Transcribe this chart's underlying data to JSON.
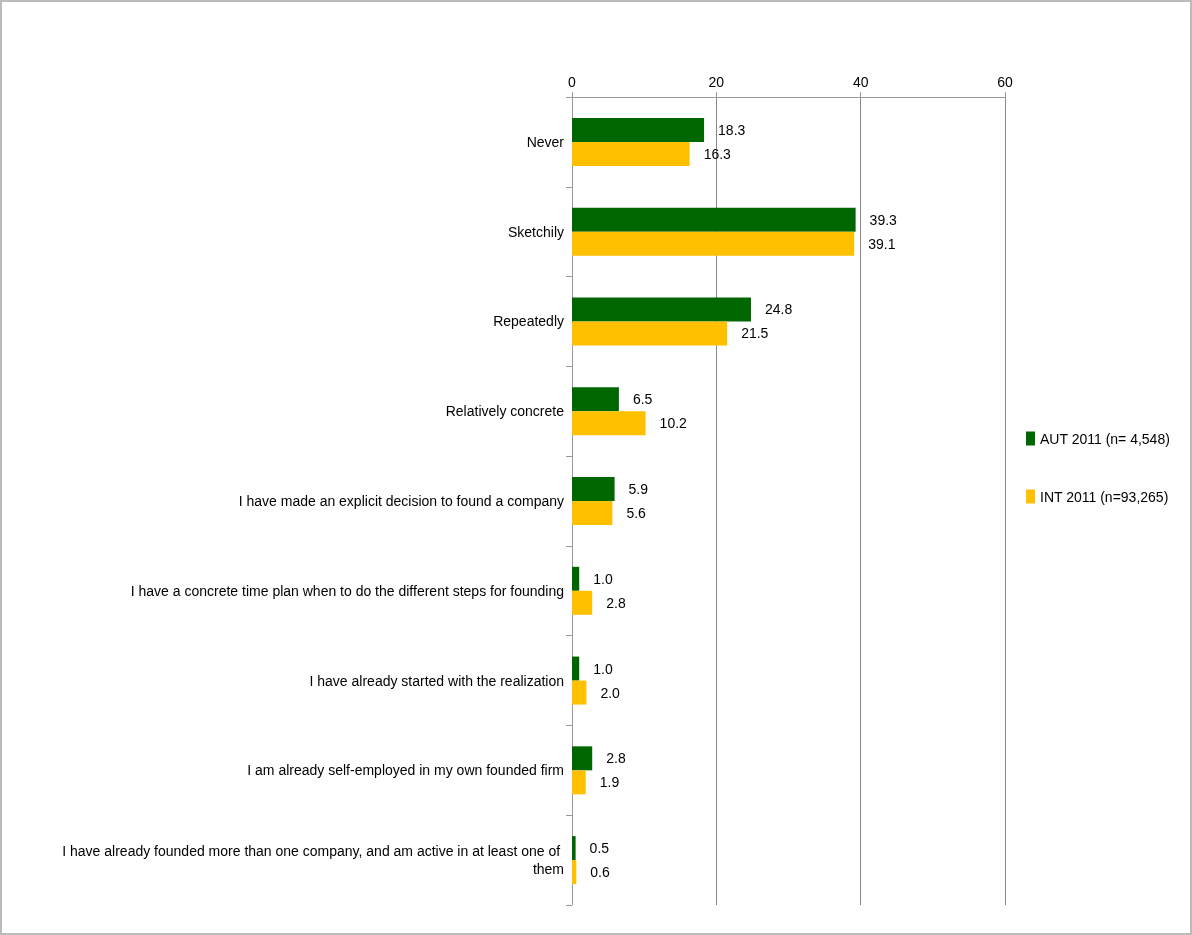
{
  "chart_data": {
    "type": "bar",
    "orientation": "horizontal",
    "categories": [
      "Never",
      "Sketchily",
      "Repeatedly",
      "Relatively concrete",
      "I have made an explicit decision to found a company",
      "I have a concrete time plan when to do the different steps for founding",
      "I have already started with the realization",
      "I am already self-employed in my own founded firm",
      "I have already founded more than one company, and am active in at least one of them"
    ],
    "series": [
      {
        "name": "AUT 2011 (n= 4,548)",
        "color": "#006600",
        "values": [
          18.3,
          39.3,
          24.8,
          6.5,
          5.9,
          1.0,
          1.0,
          2.8,
          0.5
        ],
        "value_labels": [
          "18.3",
          "39.3",
          "24.8",
          "6.5",
          "5.9",
          "1.0",
          "1.0",
          "2.8",
          "0.5"
        ]
      },
      {
        "name": "INT 2011 (n=93,265)",
        "color": "#ffc000",
        "values": [
          16.3,
          39.1,
          21.5,
          10.2,
          5.6,
          2.8,
          2.0,
          1.9,
          0.6
        ],
        "value_labels": [
          "16.3",
          "39.1",
          "21.5",
          "10.2",
          "5.6",
          "2.8",
          "2.0",
          "1.9",
          "0.6"
        ]
      }
    ],
    "xlim": [
      0,
      60
    ],
    "xticks": [
      0,
      20,
      40,
      60
    ],
    "grid": "x",
    "legend": "right"
  }
}
